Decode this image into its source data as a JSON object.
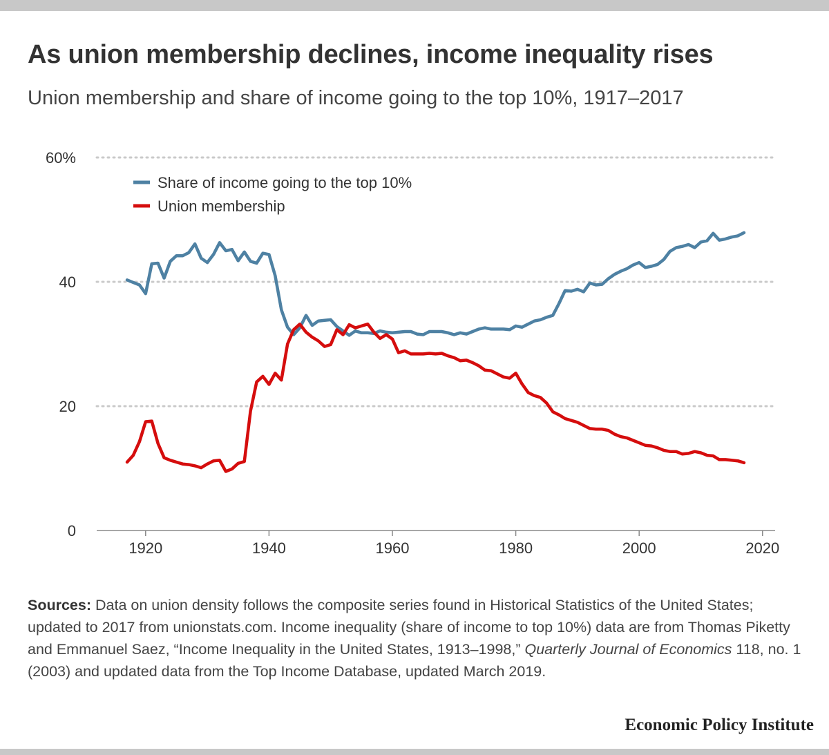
{
  "header": {
    "title": "As union membership declines, income inequality rises",
    "subtitle": "Union membership and share of income going to the top 10%, 1917–2017"
  },
  "chart_data": {
    "type": "line",
    "title": "As union membership declines, income inequality rises",
    "subtitle": "Union membership and share of income going to the top 10%, 1917–2017",
    "xlabel": "",
    "ylabel": "",
    "xlim": [
      1910,
      2020
    ],
    "ylim": [
      0,
      60
    ],
    "xticks": [
      1920,
      1940,
      1960,
      1980,
      2000,
      2020
    ],
    "yticks": [
      0,
      20,
      40,
      60
    ],
    "ytick_labels": [
      "0",
      "20",
      "40",
      "60%"
    ],
    "gridlines": "horizontal dotted",
    "legend_position": "top-left",
    "series": [
      {
        "name": "Share of income going to the top 10%",
        "color": "#4e81a3",
        "x": [
          1917,
          1918,
          1919,
          1920,
          1921,
          1922,
          1923,
          1924,
          1925,
          1926,
          1927,
          1928,
          1929,
          1930,
          1931,
          1932,
          1933,
          1934,
          1935,
          1936,
          1937,
          1938,
          1939,
          1940,
          1941,
          1942,
          1943,
          1944,
          1945,
          1946,
          1947,
          1948,
          1949,
          1950,
          1951,
          1952,
          1953,
          1954,
          1955,
          1956,
          1957,
          1958,
          1959,
          1960,
          1961,
          1962,
          1963,
          1964,
          1965,
          1966,
          1967,
          1968,
          1969,
          1970,
          1971,
          1972,
          1973,
          1974,
          1975,
          1976,
          1977,
          1978,
          1979,
          1980,
          1981,
          1982,
          1983,
          1984,
          1985,
          1986,
          1987,
          1988,
          1989,
          1990,
          1991,
          1992,
          1993,
          1994,
          1995,
          1996,
          1997,
          1998,
          1999,
          2000,
          2001,
          2002,
          2003,
          2004,
          2005,
          2006,
          2007,
          2008,
          2009,
          2010,
          2011,
          2012,
          2013,
          2014,
          2015,
          2016,
          2017
        ],
        "values": [
          40.3,
          39.9,
          39.5,
          38.1,
          42.9,
          43.0,
          40.6,
          43.3,
          44.2,
          44.2,
          44.7,
          46.1,
          43.8,
          43.1,
          44.4,
          46.3,
          45.0,
          45.2,
          43.4,
          44.8,
          43.3,
          43.0,
          44.6,
          44.4,
          41.0,
          35.5,
          32.7,
          31.5,
          32.6,
          34.6,
          33.0,
          33.7,
          33.8,
          33.9,
          32.8,
          32.1,
          31.4,
          32.1,
          31.8,
          31.8,
          31.7,
          32.1,
          31.9,
          31.8,
          31.9,
          32.0,
          32.0,
          31.6,
          31.5,
          32.0,
          32.0,
          32.0,
          31.8,
          31.5,
          31.8,
          31.6,
          32.0,
          32.4,
          32.6,
          32.4,
          32.4,
          32.4,
          32.3,
          32.9,
          32.7,
          33.2,
          33.7,
          33.9,
          34.3,
          34.6,
          36.5,
          38.6,
          38.5,
          38.8,
          38.4,
          39.8,
          39.5,
          39.6,
          40.5,
          41.2,
          41.7,
          42.1,
          42.7,
          43.1,
          42.3,
          42.5,
          42.8,
          43.6,
          44.9,
          45.5,
          45.7,
          46.0,
          45.5,
          46.4,
          46.6,
          47.8,
          46.7,
          46.9,
          47.2,
          47.4,
          47.9
        ]
      },
      {
        "name": "Union membership",
        "color": "#d50d0d",
        "x": [
          1917,
          1918,
          1919,
          1920,
          1921,
          1922,
          1923,
          1924,
          1925,
          1926,
          1927,
          1928,
          1929,
          1930,
          1931,
          1932,
          1933,
          1934,
          1935,
          1936,
          1937,
          1938,
          1939,
          1940,
          1941,
          1942,
          1943,
          1944,
          1945,
          1946,
          1947,
          1948,
          1949,
          1950,
          1951,
          1952,
          1953,
          1954,
          1955,
          1956,
          1957,
          1958,
          1959,
          1960,
          1961,
          1962,
          1963,
          1964,
          1965,
          1966,
          1967,
          1968,
          1969,
          1970,
          1971,
          1972,
          1973,
          1974,
          1975,
          1976,
          1977,
          1978,
          1979,
          1980,
          1981,
          1982,
          1983,
          1984,
          1985,
          1986,
          1987,
          1988,
          1989,
          1990,
          1991,
          1992,
          1993,
          1994,
          1995,
          1996,
          1997,
          1998,
          1999,
          2000,
          2001,
          2002,
          2003,
          2004,
          2005,
          2006,
          2007,
          2008,
          2009,
          2010,
          2011,
          2012,
          2013,
          2014,
          2015,
          2016,
          2017
        ],
        "values": [
          11.0,
          12.1,
          14.3,
          17.5,
          17.6,
          14.0,
          11.7,
          11.3,
          11.0,
          10.7,
          10.6,
          10.4,
          10.1,
          10.7,
          11.2,
          11.3,
          9.5,
          9.9,
          10.8,
          11.1,
          19.2,
          23.9,
          24.8,
          23.5,
          25.3,
          24.2,
          30.0,
          32.3,
          33.2,
          31.9,
          31.1,
          30.5,
          29.6,
          29.9,
          32.3,
          31.5,
          33.1,
          32.6,
          32.9,
          33.2,
          31.9,
          30.9,
          31.5,
          30.8,
          28.6,
          28.9,
          28.4,
          28.4,
          28.4,
          28.5,
          28.4,
          28.5,
          28.1,
          27.8,
          27.3,
          27.4,
          27.0,
          26.5,
          25.8,
          25.7,
          25.2,
          24.7,
          24.5,
          25.3,
          23.6,
          22.2,
          21.7,
          21.4,
          20.5,
          19.1,
          18.6,
          18.0,
          17.7,
          17.4,
          16.9,
          16.4,
          16.3,
          16.3,
          16.1,
          15.5,
          15.1,
          14.9,
          14.5,
          14.1,
          13.7,
          13.6,
          13.3,
          12.9,
          12.7,
          12.7,
          12.3,
          12.4,
          12.7,
          12.5,
          12.1,
          12.0,
          11.4,
          11.4,
          11.3,
          11.2,
          10.9
        ]
      }
    ]
  },
  "sources": {
    "label": "Sources:",
    "text_1": " Data on union density follows the composite series found in Historical Statistics of the United States; updated to 2017 from unionstats.com. Income inequality (share of income to top 10%) data are from Thomas Piketty and Emmanuel Saez, “Income Inequality in the United States, 1913–1998,” ",
    "journal": "Quarterly Journal of Economics",
    "text_2": " 118, no. 1 (2003) and updated data from the Top Income Database, updated March 2019."
  },
  "brand": "Economic Policy Institute"
}
